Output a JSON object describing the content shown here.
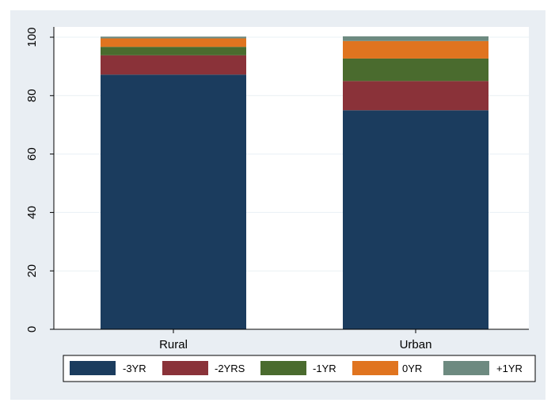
{
  "chart_data": {
    "type": "bar",
    "stacked": true,
    "categories": [
      "Rural",
      "Urban"
    ],
    "series": [
      {
        "name": "-3YR",
        "color": "#1b3c5e",
        "values": [
          87.2,
          75.0
        ]
      },
      {
        "name": "-2YRS",
        "color": "#8a3239",
        "values": [
          6.6,
          10.0
        ]
      },
      {
        "name": "-1YR",
        "color": "#4a6b2e",
        "values": [
          2.9,
          7.7
        ]
      },
      {
        "name": "0YR",
        "color": "#e0741f",
        "values": [
          2.9,
          6.0
        ]
      },
      {
        "name": "+1YR",
        "color": "#6d8a80",
        "values": [
          0.6,
          1.6
        ]
      }
    ],
    "yticks": [
      0,
      20,
      40,
      60,
      80,
      100
    ],
    "ylim": [
      0,
      100
    ],
    "grid": true,
    "legend_position": "bottom",
    "title": "",
    "xlabel": "",
    "ylabel": ""
  }
}
